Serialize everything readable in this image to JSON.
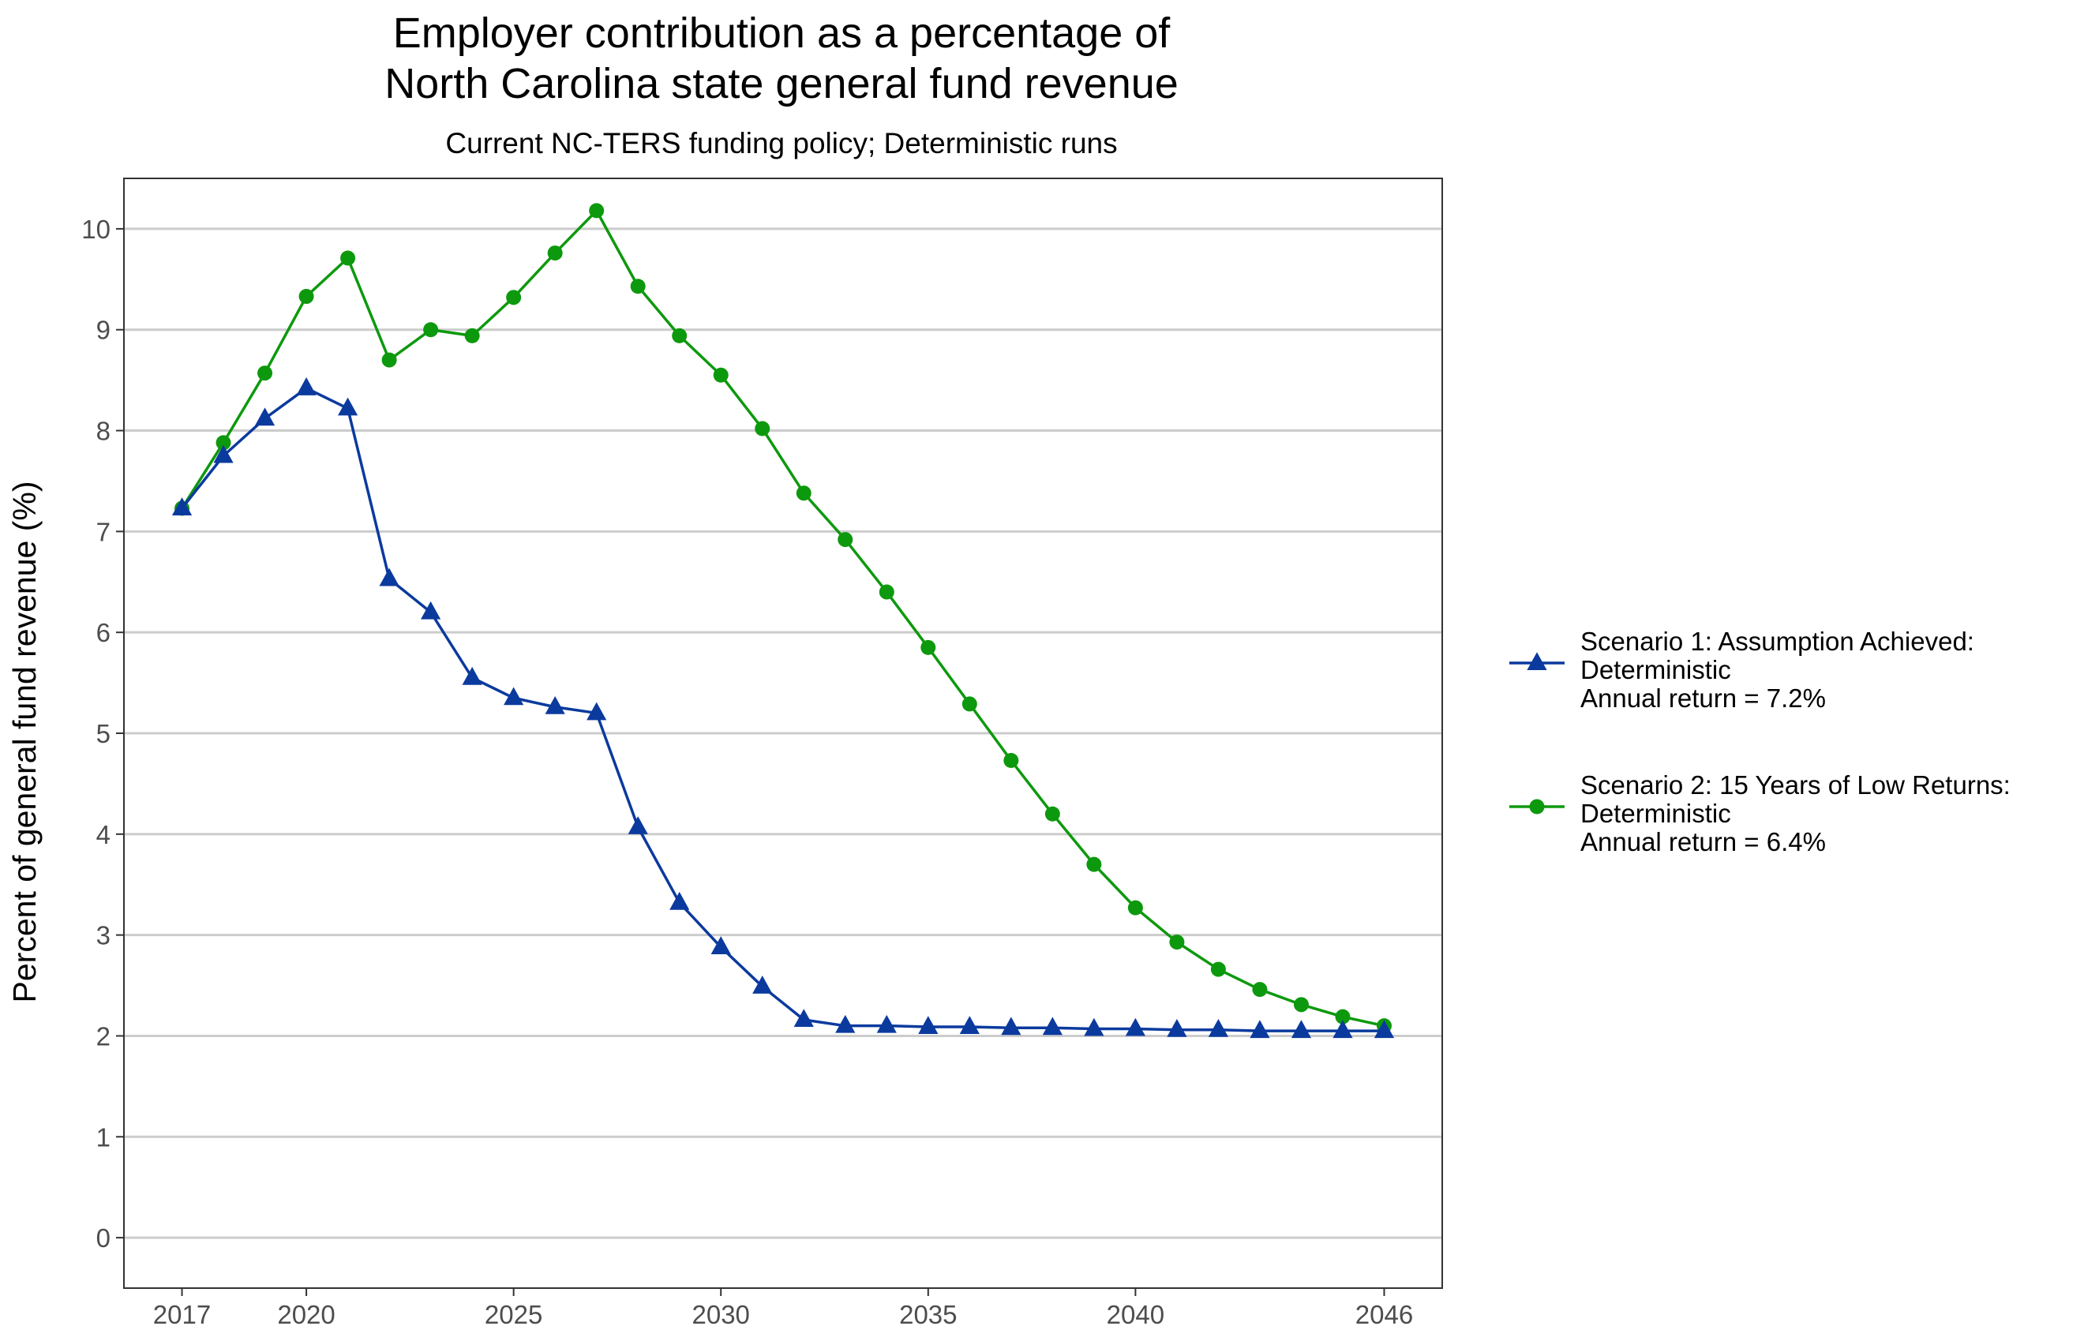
{
  "chart_data": {
    "type": "line",
    "title": [
      "Employer contribution as a percentage of",
      "North Carolina state general fund revenue"
    ],
    "subtitle": "Current NC-TERS funding policy; Deterministic runs",
    "xlabel": "",
    "ylabel": "Percent of general fund revenue (%)",
    "xlim": [
      2015.6,
      2047.4
    ],
    "ylim": [
      -0.5,
      10.5
    ],
    "x_ticks": [
      2017,
      2020,
      2025,
      2030,
      2035,
      2040,
      2046
    ],
    "y_ticks": [
      0,
      1,
      2,
      3,
      4,
      5,
      6,
      7,
      8,
      9,
      10
    ],
    "grid": "horizontal major",
    "legend_position": "right",
    "x": [
      2017,
      2018,
      2019,
      2020,
      2021,
      2022,
      2023,
      2024,
      2025,
      2026,
      2027,
      2028,
      2029,
      2030,
      2031,
      2032,
      2033,
      2034,
      2035,
      2036,
      2037,
      2038,
      2039,
      2040,
      2041,
      2042,
      2043,
      2044,
      2045,
      2046
    ],
    "series": [
      {
        "name": [
          "Scenario 1: Assumption Achieved:",
          "Deterministic",
          "Annual return = 7.2%"
        ],
        "color": "#0b3a9e",
        "marker": "triangle",
        "values": [
          7.23,
          7.75,
          8.12,
          8.42,
          8.22,
          6.53,
          6.2,
          5.55,
          5.35,
          5.26,
          5.2,
          4.07,
          3.32,
          2.88,
          2.49,
          2.16,
          2.1,
          2.1,
          2.09,
          2.09,
          2.08,
          2.08,
          2.07,
          2.07,
          2.06,
          2.06,
          2.05,
          2.05,
          2.05,
          2.05
        ]
      },
      {
        "name": [
          "Scenario 2: 15 Years of Low Returns:",
          "Deterministic",
          "Annual return = 6.4%"
        ],
        "color": "#0d990d",
        "marker": "circle",
        "values": [
          7.23,
          7.88,
          8.57,
          9.33,
          9.71,
          8.7,
          9.0,
          8.94,
          9.32,
          9.76,
          10.18,
          9.43,
          8.94,
          8.55,
          8.02,
          7.38,
          6.92,
          6.4,
          5.85,
          5.29,
          4.73,
          4.2,
          3.7,
          3.27,
          2.93,
          2.66,
          2.46,
          2.31,
          2.19,
          2.1
        ]
      }
    ]
  }
}
